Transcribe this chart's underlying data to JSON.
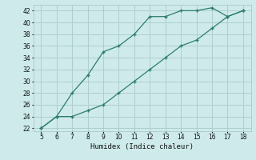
{
  "xlabel": "Humidex (Indice chaleur)",
  "x_upper": [
    5,
    6,
    7,
    8,
    9,
    10,
    11,
    12,
    13,
    14,
    15,
    16,
    17,
    18
  ],
  "y_upper": [
    22,
    24,
    28,
    31,
    35,
    36,
    38,
    41,
    41,
    42,
    42,
    42.5,
    41,
    42
  ],
  "x_lower": [
    5,
    6,
    7,
    8,
    9,
    10,
    11,
    12,
    13,
    14,
    15,
    16,
    17,
    18
  ],
  "y_lower": [
    22,
    24,
    24,
    25,
    26,
    28,
    30,
    32,
    34,
    36,
    37,
    39,
    41,
    42
  ],
  "line_color": "#2d7d6e",
  "bg_color": "#ceeaea",
  "grid_color": "#aacaca",
  "xlim": [
    4.5,
    18.5
  ],
  "ylim": [
    21.5,
    43
  ],
  "xticks": [
    5,
    6,
    7,
    8,
    9,
    10,
    11,
    12,
    13,
    14,
    15,
    16,
    17,
    18
  ],
  "yticks": [
    22,
    24,
    26,
    28,
    30,
    32,
    34,
    36,
    38,
    40,
    42
  ],
  "marker": "+"
}
